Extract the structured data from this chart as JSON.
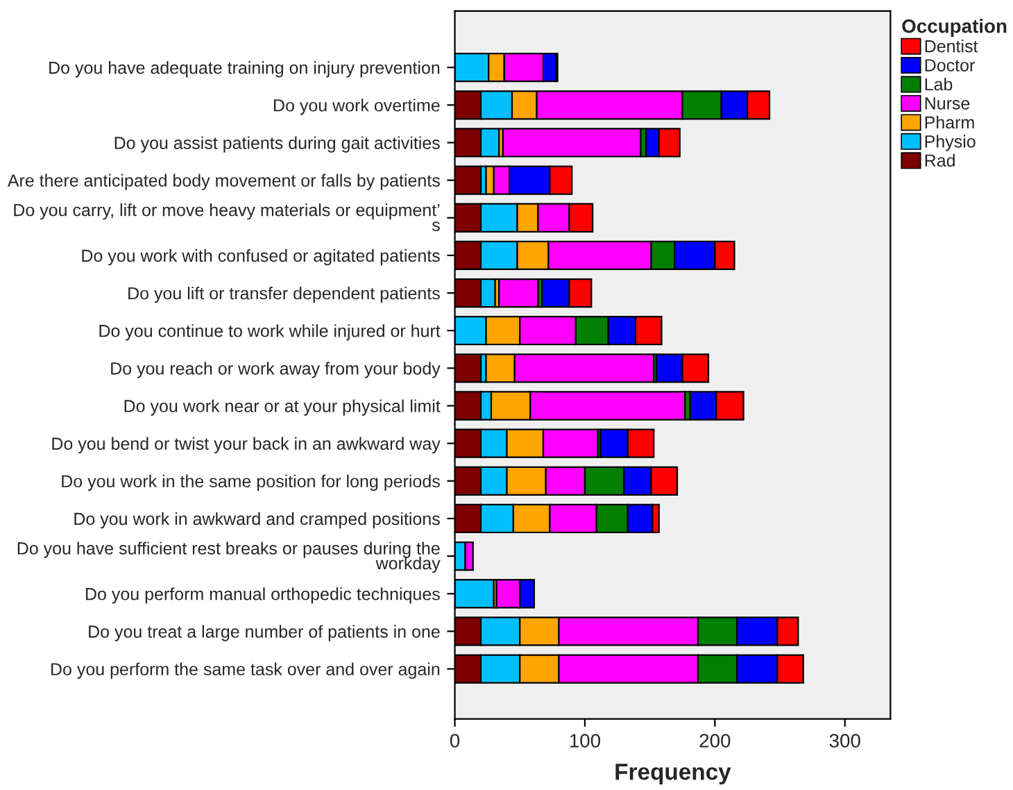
{
  "chart_data": {
    "type": "bar",
    "orientation": "horizontal",
    "stacked": true,
    "xlabel": "Frequency",
    "legend_title": "Occupation",
    "legend": "top right",
    "categories": [
      "Do you have adequate training on injury prevention",
      "Do you work overtime",
      "Do you assist patients during gait activities",
      "Are there anticipated body movement or falls by patients",
      "Do you carry, lift or move heavy materials or equipment’\ns",
      "Do you work with confused or agitated patients",
      "Do you lift or transfer dependent patients",
      "Do you continue to work while injured or hurt",
      "Do you reach or work away from your body",
      "Do you work near or at your physical limit",
      "Do you bend or twist your back in an awkward way",
      "Do you work in the same position for long periods",
      "Do you work in awkward and cramped positions",
      "Do you have sufficient rest breaks or pauses during the\nworkday",
      "Do you perform manual orthopedic techniques",
      "Do you treat a large number of patients in one",
      "Do you perform the same task over and over again"
    ],
    "series": [
      {
        "name": "Rad",
        "color": "#7f0000",
        "values": [
          0,
          20,
          20,
          20,
          20,
          20,
          20,
          0,
          20,
          20,
          20,
          20,
          20,
          0,
          0,
          20,
          20
        ]
      },
      {
        "name": "Physio",
        "color": "#00bfff",
        "values": [
          26,
          24,
          14,
          4,
          28,
          28,
          11,
          24,
          4,
          8,
          20,
          20,
          25,
          8,
          30,
          30,
          30
        ]
      },
      {
        "name": "Pharm",
        "color": "#ffa500",
        "values": [
          12,
          19,
          3,
          6,
          16,
          24,
          3,
          26,
          22,
          30,
          28,
          30,
          28,
          0,
          2,
          30,
          30
        ]
      },
      {
        "name": "Nurse",
        "color": "#ff00ff",
        "values": [
          30,
          112,
          106,
          12,
          24,
          79,
          30,
          43,
          107,
          119,
          42,
          30,
          36,
          6,
          18,
          107,
          107
        ]
      },
      {
        "name": "Lab",
        "color": "#007f00",
        "values": [
          0,
          30,
          4,
          0,
          0,
          18,
          3,
          25,
          2,
          4,
          2,
          30,
          24,
          0,
          0,
          30,
          30
        ]
      },
      {
        "name": "Doctor",
        "color": "#0000ff",
        "values": [
          10,
          20,
          10,
          31,
          0,
          31,
          21,
          21,
          20,
          20,
          21,
          21,
          19,
          0,
          11,
          31,
          31
        ]
      },
      {
        "name": "Dentist",
        "color": "#ff0000",
        "values": [
          1,
          17,
          16,
          17,
          18,
          15,
          17,
          20,
          20,
          21,
          20,
          20,
          5,
          0,
          0,
          16,
          20
        ]
      }
    ],
    "xlim": [
      0,
      335
    ],
    "xticks": [
      0,
      100,
      200,
      300
    ],
    "grid": false
  }
}
